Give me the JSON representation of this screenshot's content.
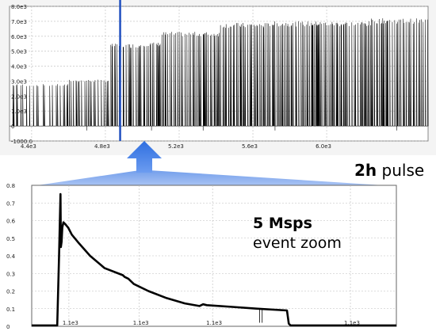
{
  "annotations": {
    "pulse_bold": "2h",
    "pulse_rest": " pulse",
    "zoom_bold": "5 Msps",
    "zoom_rest": "event zoom"
  },
  "chart_data": [
    {
      "type": "line",
      "title": "",
      "xlabel": "",
      "ylabel": "",
      "xlim": [
        4280,
        6550
      ],
      "ylim": [
        -1000,
        8000
      ],
      "y_ticks": [
        "8.0e3",
        "7.0e3",
        "6.0e3",
        "5.0e3",
        "4.0e3",
        "3.0e3",
        "2.0e3",
        "1.0e3",
        "0",
        "-1000.0"
      ],
      "y_tick_values": [
        8000,
        7000,
        6000,
        5000,
        4000,
        3000,
        2000,
        1000,
        0,
        -1000
      ],
      "x_ticks": [
        "4.4e3",
        "4.8e3",
        "5.2e3",
        "5.6e3",
        "6.0e3"
      ],
      "x_tick_values": [
        4400,
        4800,
        5200,
        5600,
        6000
      ],
      "grid": true,
      "marker_x": 4880,
      "marker_color": "#1f4fbf",
      "line_color": "#000000",
      "series": [
        {
          "segments_x": [
            4280,
            4600,
            4600,
            4820,
            4820,
            4990,
            4990,
            5100,
            5100,
            5420,
            5420,
            5690,
            5690,
            6240,
            6240,
            6540
          ],
          "segments_y": [
            2800,
            2800,
            3100,
            3100,
            5500,
            5500,
            5600,
            5600,
            6300,
            6300,
            6900,
            6900,
            7000,
            7000,
            7200,
            7200
          ],
          "baseline": 0
        }
      ]
    },
    {
      "type": "line",
      "title": "",
      "xlabel": "",
      "ylabel": "",
      "xlim": [
        0,
        100
      ],
      "ylim": [
        0,
        0.8
      ],
      "y_ticks": [
        "0.8",
        "0.7",
        "0.6",
        "0.5",
        "0.4",
        "0.3",
        "0.2",
        "0.1",
        "0"
      ],
      "y_tick_values": [
        0.8,
        0.7,
        0.6,
        0.5,
        0.4,
        0.3,
        0.2,
        0.1,
        0
      ],
      "x_ticks": [
        "1.1e3",
        "1.1e3",
        "1.1e3",
        "1.1e3"
      ],
      "x_tick_values": [
        10.2,
        29.5,
        49.6,
        87.4
      ],
      "grid": true,
      "line_color": "#000000",
      "series": [
        {
          "x": [
            0,
            7,
            7.5,
            7.9,
            8.0,
            8.2,
            8.4,
            8.7,
            9.2,
            10.0,
            11.0,
            13.0,
            16.0,
            20.0,
            25.0,
            25.5,
            26.5,
            28.0,
            32.0,
            37.0,
            42.0,
            46.0,
            47.0,
            48.0,
            55.0,
            62.0,
            70.0,
            70.5,
            71.0,
            100.0
          ],
          "y": [
            0.005,
            0.005,
            0.4,
            0.75,
            0.45,
            0.48,
            0.56,
            0.59,
            0.58,
            0.56,
            0.52,
            0.47,
            0.4,
            0.33,
            0.29,
            0.28,
            0.27,
            0.24,
            0.2,
            0.16,
            0.13,
            0.115,
            0.125,
            0.12,
            0.11,
            0.1,
            0.09,
            0.015,
            0.005,
            0.005
          ]
        }
      ]
    }
  ]
}
